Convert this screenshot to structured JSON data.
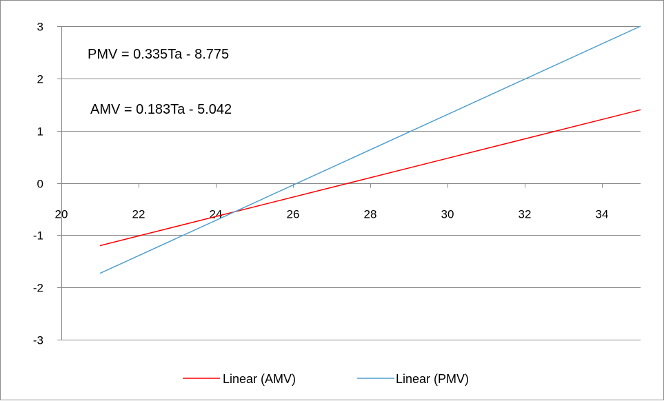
{
  "chart_data": {
    "type": "line",
    "x_ticks": [
      "20",
      "22",
      "24",
      "26",
      "28",
      "30",
      "32",
      "34"
    ],
    "y_ticks": [
      "3",
      "2",
      "1",
      "0",
      "-1",
      "-2",
      "-3"
    ],
    "xlim": [
      20,
      35
    ],
    "ylim": [
      -3,
      3
    ],
    "grid": "horizontal",
    "legend_position": "bottom",
    "series": [
      {
        "name": "Linear (AMV)",
        "color": "#ff0000",
        "x": [
          21,
          35
        ],
        "y": [
          -1.2,
          1.4
        ]
      },
      {
        "name": "Linear (PMV)",
        "color": "#4f9fd1",
        "x": [
          21,
          35
        ],
        "y": [
          -1.73,
          3.0
        ]
      }
    ],
    "annotations": [
      {
        "text": "PMV = 0.335Ta - 8.775"
      },
      {
        "text": "AMV = 0.183Ta - 5.042"
      }
    ]
  }
}
